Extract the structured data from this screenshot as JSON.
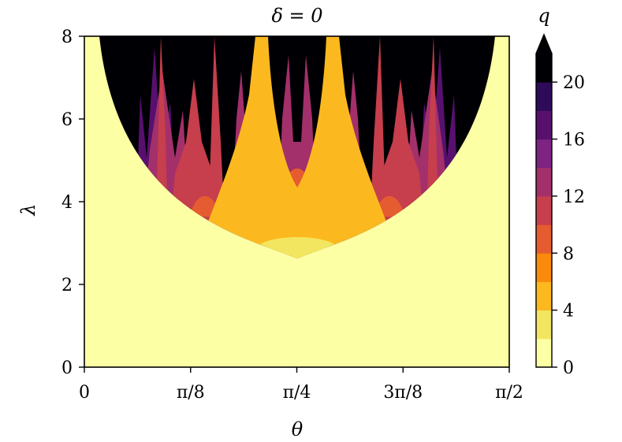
{
  "chart_data": {
    "type": "heatmap",
    "title": "δ = 0",
    "xlabel": "θ",
    "ylabel": "λ",
    "xlim": [
      0,
      1.5708
    ],
    "ylim": [
      0,
      8
    ],
    "x_ticks": [
      {
        "value": 0,
        "label": "0"
      },
      {
        "value": 0.3927,
        "label": "π/8"
      },
      {
        "value": 0.7854,
        "label": "π/4"
      },
      {
        "value": 1.1781,
        "label": "3π/8"
      },
      {
        "value": 1.5708,
        "label": "π/2"
      }
    ],
    "y_ticks": [
      {
        "value": 0,
        "label": "0"
      },
      {
        "value": 2,
        "label": "2"
      },
      {
        "value": 4,
        "label": "4"
      },
      {
        "value": 6,
        "label": "6"
      },
      {
        "value": 8,
        "label": "8"
      }
    ],
    "colorbar": {
      "label": "q",
      "levels": [
        0,
        2,
        4,
        6,
        8,
        10,
        12,
        14,
        16,
        18,
        20,
        22
      ],
      "tick_labels": [
        "0",
        "4",
        "8",
        "12",
        "16",
        "20"
      ],
      "tick_values": [
        0,
        4,
        8,
        12,
        16,
        20
      ],
      "colors": [
        "#fcffa4",
        "#f2e660",
        "#fcb91f",
        "#f98a0b",
        "#e55c30",
        "#c73e4c",
        "#a3306a",
        "#7d2382",
        "#57106e",
        "#2d0b59",
        "#000004"
      ],
      "extend": "max",
      "colormap": "inferno"
    },
    "regions": [
      {
        "q_level": 0,
        "description": "outer region"
      },
      {
        "q_level": 2,
        "min_lambda": 2.6,
        "theta": 0.7854
      },
      {
        "q_level": 4
      },
      {
        "q_level": 8
      },
      {
        "q_level": 10
      },
      {
        "q_level": 12
      },
      {
        "q_level": 16
      },
      {
        "q_level": 20
      }
    ]
  }
}
